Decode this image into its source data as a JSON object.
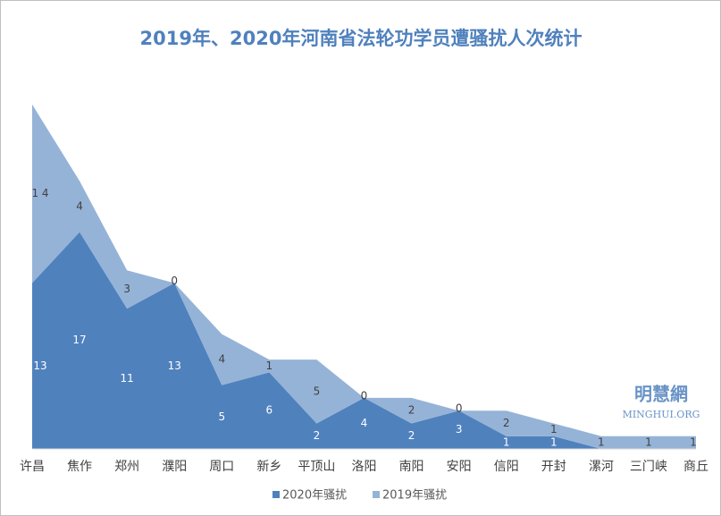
{
  "chart_data": {
    "type": "stacked-area",
    "title": "2019年、2020年河南省法轮功学员遭骚扰人次统计",
    "categories": [
      "许昌",
      "焦作",
      "郑州",
      "濮阳",
      "周口",
      "新乡",
      "平顶山",
      "洛阳",
      "南阳",
      "安阳",
      "信阳",
      "开封",
      "漯河",
      "三门峡",
      "商丘"
    ],
    "series": [
      {
        "name": "2020年骚扰",
        "color": "#4f81bd",
        "values": [
          13,
          17,
          11,
          13,
          5,
          6,
          2,
          4,
          2,
          3,
          1,
          1,
          0,
          0,
          0
        ],
        "value_labels": [
          "13",
          "17",
          "11",
          "13",
          "5",
          "6",
          "2",
          "4",
          "2",
          "3",
          "1",
          "1",
          null,
          null,
          null
        ]
      },
      {
        "name": "2019年骚扰",
        "color": "#95b3d7",
        "values": [
          14,
          4,
          3,
          0,
          4,
          1,
          5,
          0,
          2,
          0,
          2,
          1,
          1,
          1,
          1
        ],
        "value_labels": [
          "1 4",
          "4",
          "3",
          "0",
          "4",
          "1",
          "5",
          "0",
          "2",
          "0",
          "2",
          "1",
          "1",
          "1",
          "1"
        ]
      }
    ],
    "ylim": [
      0,
      30
    ],
    "legend": "bottom",
    "watermark": {
      "title": "明慧網",
      "subtitle": "MINGHUI.ORG"
    }
  }
}
